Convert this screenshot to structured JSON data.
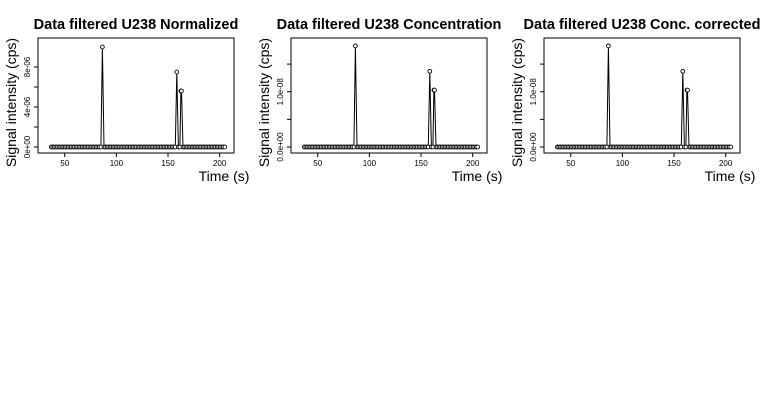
{
  "chart_data": [
    {
      "type": "line",
      "title": "Data filtered U238 Normalized",
      "xlabel": "Time (s)",
      "ylabel": "Signal intensity (cps)",
      "xlim": [
        28,
        210
      ],
      "ylim": [
        0,
        1.05e-05
      ],
      "x_ticks": [
        50,
        100,
        150,
        200
      ],
      "x_tick_labels": [
        "50",
        "100",
        "150",
        "200"
      ],
      "y_ticks": [
        0,
        4e-06,
        8e-06
      ],
      "y_tick_labels": [
        "0e+00",
        "4e-06",
        "8e-06"
      ],
      "y_minor_ticks": [
        2e-06,
        6e-06
      ],
      "grid": false,
      "series": [
        {
          "x_start": 37,
          "x_step": 1.5,
          "count": 113,
          "baseline": 0,
          "peaks": [
            [
              86.5,
              1e-05
            ],
            [
              158.5,
              7.5e-06
            ],
            [
              162.5,
              5.6e-06
            ]
          ]
        }
      ]
    },
    {
      "type": "line",
      "title": "Data filtered U238 Concentration",
      "xlabel": "Time (s)",
      "ylabel": "Signal intensity (cps)",
      "xlim": [
        28,
        210
      ],
      "ylim": [
        0,
        1.9e-08
      ],
      "x_ticks": [
        50,
        100,
        150,
        200
      ],
      "x_tick_labels": [
        "50",
        "100",
        "150",
        "200"
      ],
      "y_ticks": [
        0,
        1e-08
      ],
      "y_tick_labels": [
        "0.0e+00",
        "1.0e-08"
      ],
      "y_minor_ticks": [
        5e-09,
        1.5e-08
      ],
      "grid": false,
      "series": [
        {
          "x_start": 37,
          "x_step": 1.5,
          "count": 113,
          "baseline": 0,
          "peaks": [
            [
              86.5,
              1.83e-08
            ],
            [
              158.5,
              1.37e-08
            ],
            [
              162.5,
              1.03e-08
            ]
          ]
        }
      ]
    },
    {
      "type": "line",
      "title": "Data filtered U238 Conc. corrected",
      "xlabel": "Time (s)",
      "ylabel": "Signal intensity (cps)",
      "xlim": [
        28,
        210
      ],
      "ylim": [
        0,
        1.9e-08
      ],
      "x_ticks": [
        50,
        100,
        150,
        200
      ],
      "x_tick_labels": [
        "50",
        "100",
        "150",
        "200"
      ],
      "y_ticks": [
        0,
        1e-08
      ],
      "y_tick_labels": [
        "0.0e+00",
        "1.0e-08"
      ],
      "y_minor_ticks": [
        5e-09,
        1.5e-08
      ],
      "grid": false,
      "series": [
        {
          "x_start": 37,
          "x_step": 1.5,
          "count": 113,
          "baseline": 0,
          "peaks": [
            [
              86.5,
              1.83e-08
            ],
            [
              158.5,
              1.37e-08
            ],
            [
              162.5,
              1.03e-08
            ]
          ]
        }
      ]
    }
  ]
}
